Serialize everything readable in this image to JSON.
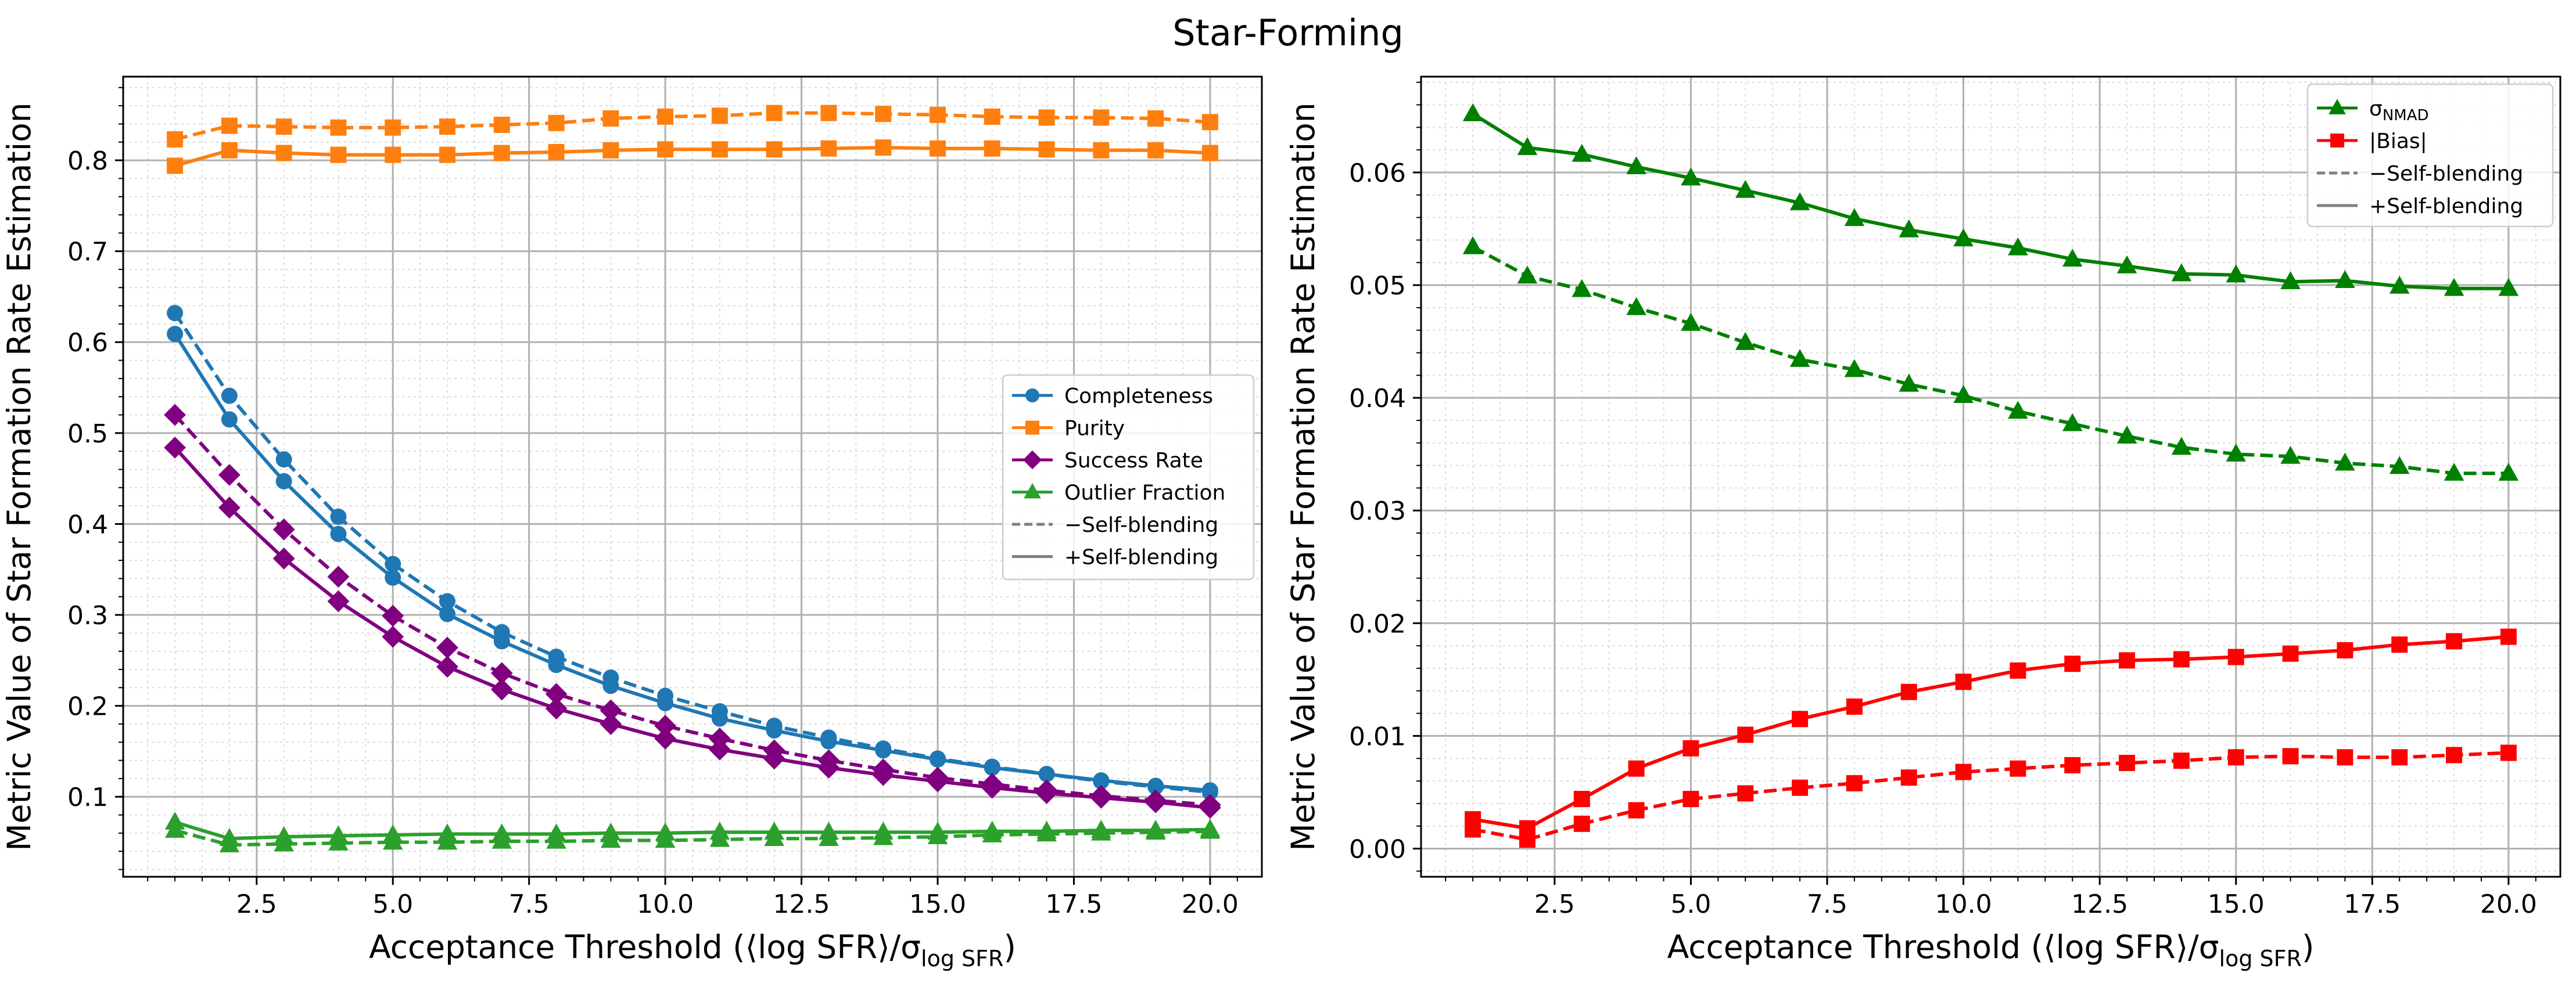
{
  "figure": {
    "title": "Star-Forming"
  },
  "chart_data": [
    {
      "id": "left",
      "type": "line",
      "title": "",
      "xlabel": "Acceptance Threshold (⟨log SFR⟩/σ",
      "xlabel_sub": "log SFR",
      "xlabel_close": ")",
      "ylabel": "Metric Value of Star Formation Rate Estimation",
      "xlim": [
        0.05,
        20.95
      ],
      "ylim": [
        0.012,
        0.892
      ],
      "xticks": [
        2.5,
        5.0,
        7.5,
        10.0,
        12.5,
        15.0,
        17.5,
        20.0
      ],
      "xticklabels": [
        "2.5",
        "5.0",
        "7.5",
        "10.0",
        "12.5",
        "15.0",
        "17.5",
        "20.0"
      ],
      "yticks": [
        0.1,
        0.2,
        0.3,
        0.4,
        0.5,
        0.6,
        0.7,
        0.8
      ],
      "yticklabels": [
        "0.1",
        "0.2",
        "0.3",
        "0.4",
        "0.5",
        "0.6",
        "0.7",
        "0.8"
      ],
      "yminor_step": 0.02,
      "xminor_step": 0.5,
      "grid": true,
      "legend_position": "center-right",
      "x": [
        1,
        2,
        3,
        4,
        5,
        6,
        7,
        8,
        9,
        10,
        11,
        12,
        13,
        14,
        15,
        16,
        17,
        18,
        19,
        20
      ],
      "series": [
        {
          "name": "Completeness",
          "variant": "-Self-blending",
          "color": "#1f77b4",
          "marker": "circle",
          "dashed": true,
          "values": [
            0.632,
            0.541,
            0.471,
            0.408,
            0.356,
            0.315,
            0.281,
            0.254,
            0.231,
            0.211,
            0.194,
            0.178,
            0.165,
            0.153,
            0.142,
            0.133,
            0.125,
            0.117,
            0.111,
            0.105
          ]
        },
        {
          "name": "Completeness",
          "variant": "+Self-blending",
          "color": "#1f77b4",
          "marker": "circle",
          "dashed": false,
          "values": [
            0.609,
            0.515,
            0.447,
            0.389,
            0.341,
            0.301,
            0.271,
            0.245,
            0.222,
            0.203,
            0.186,
            0.173,
            0.161,
            0.151,
            0.141,
            0.132,
            0.125,
            0.118,
            0.112,
            0.107
          ]
        },
        {
          "name": "Purity",
          "variant": "-Self-blending",
          "color": "#ff7f0e",
          "marker": "square",
          "dashed": true,
          "values": [
            0.823,
            0.838,
            0.837,
            0.836,
            0.836,
            0.837,
            0.839,
            0.841,
            0.846,
            0.848,
            0.849,
            0.852,
            0.852,
            0.851,
            0.85,
            0.848,
            0.847,
            0.847,
            0.846,
            0.842
          ]
        },
        {
          "name": "Purity",
          "variant": "+Self-blending",
          "color": "#ff7f0e",
          "marker": "square",
          "dashed": false,
          "values": [
            0.794,
            0.811,
            0.808,
            0.806,
            0.806,
            0.806,
            0.808,
            0.809,
            0.811,
            0.812,
            0.812,
            0.812,
            0.813,
            0.814,
            0.813,
            0.813,
            0.812,
            0.811,
            0.811,
            0.808
          ]
        },
        {
          "name": "Success Rate",
          "variant": "-Self-blending",
          "color": "#800080",
          "marker": "diamond",
          "dashed": true,
          "values": [
            0.52,
            0.454,
            0.394,
            0.342,
            0.299,
            0.264,
            0.236,
            0.213,
            0.195,
            0.178,
            0.164,
            0.151,
            0.14,
            0.13,
            0.121,
            0.114,
            0.107,
            0.101,
            0.096,
            0.091
          ]
        },
        {
          "name": "Success Rate",
          "variant": "+Self-blending",
          "color": "#800080",
          "marker": "diamond",
          "dashed": false,
          "values": [
            0.484,
            0.418,
            0.362,
            0.315,
            0.276,
            0.243,
            0.218,
            0.197,
            0.18,
            0.164,
            0.152,
            0.142,
            0.132,
            0.124,
            0.117,
            0.11,
            0.104,
            0.099,
            0.094,
            0.088
          ]
        },
        {
          "name": "Outlier Fraction",
          "variant": "-Self-blending",
          "color": "#2ca02c",
          "marker": "triangle",
          "dashed": true,
          "values": [
            0.063,
            0.047,
            0.048,
            0.049,
            0.05,
            0.05,
            0.051,
            0.051,
            0.052,
            0.052,
            0.053,
            0.054,
            0.054,
            0.055,
            0.056,
            0.058,
            0.059,
            0.06,
            0.061,
            0.062
          ]
        },
        {
          "name": "Outlier Fraction",
          "variant": "+Self-blending",
          "color": "#2ca02c",
          "marker": "triangle",
          "dashed": false,
          "values": [
            0.072,
            0.054,
            0.056,
            0.057,
            0.058,
            0.059,
            0.059,
            0.059,
            0.06,
            0.06,
            0.061,
            0.061,
            0.061,
            0.061,
            0.061,
            0.062,
            0.062,
            0.063,
            0.063,
            0.064
          ]
        }
      ],
      "legend": [
        {
          "label": "Completeness",
          "color": "#1f77b4",
          "marker": "circle",
          "dashed": false
        },
        {
          "label": "Purity",
          "color": "#ff7f0e",
          "marker": "square",
          "dashed": false
        },
        {
          "label": "Success Rate",
          "color": "#800080",
          "marker": "diamond",
          "dashed": false
        },
        {
          "label": "Outlier Fraction",
          "color": "#2ca02c",
          "marker": "triangle",
          "dashed": false
        },
        {
          "label": "−Self-blending",
          "color": "#808080",
          "marker": "none",
          "dashed": true
        },
        {
          "label": "+Self-blending",
          "color": "#808080",
          "marker": "none",
          "dashed": false
        }
      ]
    },
    {
      "id": "right",
      "type": "line",
      "title": "",
      "xlabel": "Acceptance Threshold (⟨log SFR⟩/σ",
      "xlabel_sub": "log SFR",
      "xlabel_close": ")",
      "ylabel": "Metric Value of Star Formation Rate Estimation",
      "xlim": [
        0.05,
        20.95
      ],
      "ylim": [
        -0.0025,
        0.0685
      ],
      "xticks": [
        2.5,
        5.0,
        7.5,
        10.0,
        12.5,
        15.0,
        17.5,
        20.0
      ],
      "xticklabels": [
        "2.5",
        "5.0",
        "7.5",
        "10.0",
        "12.5",
        "15.0",
        "17.5",
        "20.0"
      ],
      "yticks": [
        0.0,
        0.01,
        0.02,
        0.03,
        0.04,
        0.05,
        0.06
      ],
      "yticklabels": [
        "0.00",
        "0.01",
        "0.02",
        "0.03",
        "0.04",
        "0.05",
        "0.06"
      ],
      "yminor_step": 0.002,
      "xminor_step": 0.5,
      "grid": true,
      "legend_position": "top-right",
      "x": [
        1,
        2,
        3,
        4,
        5,
        6,
        7,
        8,
        9,
        10,
        11,
        12,
        13,
        14,
        15,
        16,
        17,
        18,
        19,
        20
      ],
      "series": [
        {
          "name": "σNMAD",
          "variant": "+Self-blending",
          "color": "#008000",
          "marker": "triangle",
          "dashed": false,
          "values": [
            0.0652,
            0.0622,
            0.0616,
            0.0605,
            0.0595,
            0.0584,
            0.0573,
            0.0559,
            0.0549,
            0.0541,
            0.0533,
            0.0523,
            0.0517,
            0.051,
            0.0509,
            0.0503,
            0.0504,
            0.0499,
            0.0497,
            0.0497
          ]
        },
        {
          "name": "σNMAD",
          "variant": "-Self-blending",
          "color": "#008000",
          "marker": "triangle",
          "dashed": true,
          "values": [
            0.0534,
            0.0508,
            0.0496,
            0.048,
            0.0466,
            0.0449,
            0.0434,
            0.0425,
            0.0412,
            0.0402,
            0.0388,
            0.0377,
            0.0366,
            0.0356,
            0.035,
            0.0348,
            0.0342,
            0.0339,
            0.0333,
            0.0333
          ]
        },
        {
          "name": "|Bias|",
          "variant": "+Self-blending",
          "color": "#ff0000",
          "marker": "square",
          "dashed": false,
          "values": [
            0.0026,
            0.0018,
            0.0044,
            0.0071,
            0.0089,
            0.0101,
            0.0115,
            0.0126,
            0.0139,
            0.0148,
            0.0158,
            0.0164,
            0.0167,
            0.0168,
            0.017,
            0.0173,
            0.0176,
            0.0181,
            0.0184,
            0.0188
          ]
        },
        {
          "name": "|Bias|",
          "variant": "-Self-blending",
          "color": "#ff0000",
          "marker": "square",
          "dashed": true,
          "values": [
            0.0017,
            0.0008,
            0.0022,
            0.0034,
            0.0044,
            0.0049,
            0.0054,
            0.0058,
            0.0063,
            0.0068,
            0.0071,
            0.0074,
            0.0076,
            0.0078,
            0.0081,
            0.0082,
            0.0081,
            0.0081,
            0.0083,
            0.0085
          ]
        }
      ],
      "legend": [
        {
          "label": "σ",
          "sub": "NMAD",
          "color": "#008000",
          "marker": "triangle",
          "dashed": false
        },
        {
          "label": "|Bias|",
          "color": "#ff0000",
          "marker": "square",
          "dashed": false
        },
        {
          "label": "−Self-blending",
          "color": "#808080",
          "marker": "none",
          "dashed": true
        },
        {
          "label": "+Self-blending",
          "color": "#808080",
          "marker": "none",
          "dashed": false
        }
      ]
    }
  ]
}
